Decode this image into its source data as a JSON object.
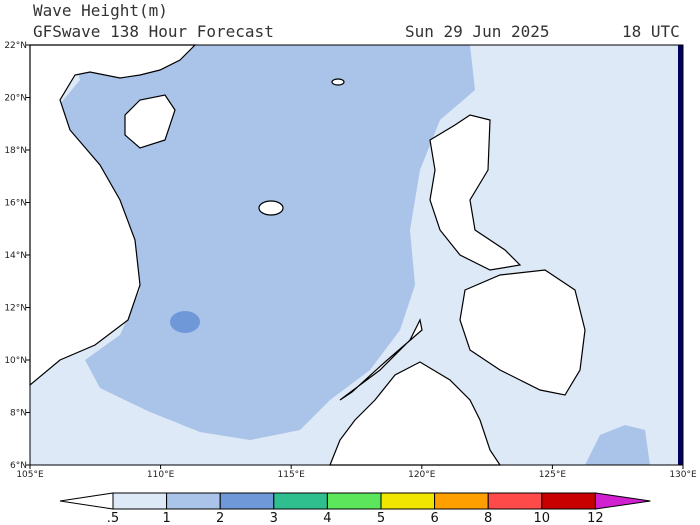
{
  "header": {
    "title": "Wave Height(m)",
    "subtitle": "GFSwave 138 Hour Forecast",
    "date": "Sun 29 Jun 2025",
    "time": "18 UTC"
  },
  "map": {
    "lon_labels": [
      "105°E",
      "110°E",
      "115°E",
      "120°E",
      "125°E",
      "130°E"
    ],
    "lat_labels": [
      "22°N",
      "20°N",
      "18°N",
      "16°N",
      "14°N",
      "12°N",
      "10°N",
      "8°N",
      "6°N"
    ]
  },
  "legend": {
    "labels": [
      ".5",
      "1",
      "2",
      "3",
      "4",
      "5",
      "6",
      "8",
      "10",
      "12"
    ],
    "colors": [
      "#ffffff",
      "#dde9f7",
      "#aac3e8",
      "#6f98d8",
      "#2fbf8f",
      "#5ce65c",
      "#f0e600",
      "#ffa000",
      "#ff4a4a",
      "#c80000",
      "#d020d0"
    ]
  }
}
